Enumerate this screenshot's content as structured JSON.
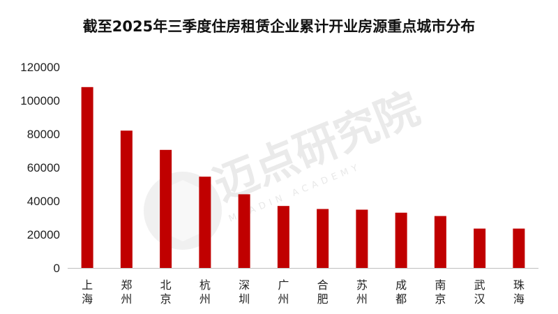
{
  "colors": {
    "bar": "#c00000",
    "axis": "#bfbfbf",
    "watermark": "#d9d9d9"
  },
  "watermark": {
    "icon": "maidian-logo-icon",
    "cn": "迈点研究院",
    "en": "MEADIN ACADEMY"
  },
  "chart_data": {
    "type": "bar",
    "title": "截至2025年三季度住房租赁企业累计开业房源重点城市分布",
    "xlabel": "",
    "ylabel": "",
    "ylim": [
      0,
      120000
    ],
    "yticks": [
      "0",
      "20000",
      "40000",
      "60000",
      "80000",
      "100000",
      "120000"
    ],
    "grid": false,
    "legend": "none",
    "categories": [
      "上海",
      "郑州",
      "北京",
      "杭州",
      "深圳",
      "广州",
      "合肥",
      "苏州",
      "成都",
      "南京",
      "武汉",
      "珠海"
    ],
    "values": [
      108000,
      82000,
      70500,
      54500,
      44000,
      37000,
      35200,
      34800,
      33000,
      31000,
      23500,
      23500
    ]
  }
}
